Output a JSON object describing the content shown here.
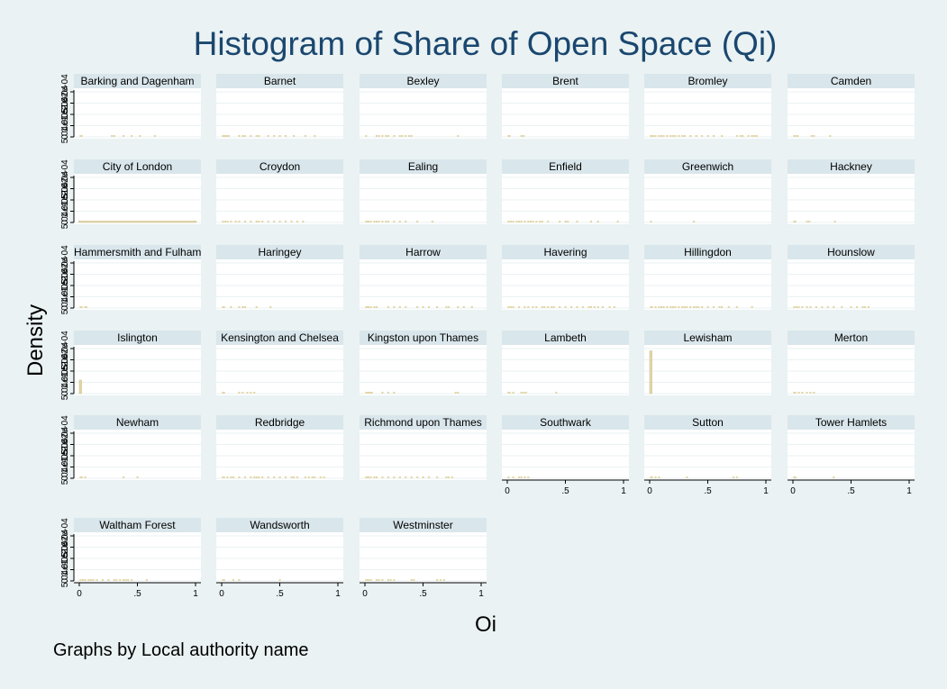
{
  "title": "Histogram of Share of Open Space (Qi)",
  "note": "Graphs by Local authority name",
  "chart_data": {
    "type": "histogram",
    "title": "Histogram of Share of Open Space (Qi)",
    "xlabel": "Oi",
    "ylabel": "Density",
    "xlim": [
      0,
      1
    ],
    "x_ticks": [
      "0",
      ".5",
      "1"
    ],
    "y_ticks": [
      "0",
      "5.04e-05",
      "1.01e-04",
      "1.51e-04",
      "2.02e-04"
    ],
    "grid": true,
    "legend": "none",
    "bar_color": "#e3d6a8",
    "layout": {
      "columns": 6
    },
    "panels": [
      {
        "name": "Barking and Dagenham",
        "values": [
          0.01,
          0.02,
          0.28,
          0.3,
          0.38,
          0.45,
          0.52,
          0.65
        ],
        "heights": []
      },
      {
        "name": "Barnet",
        "values": [
          0.01,
          0.02,
          0.03,
          0.04,
          0.05,
          0.06,
          0.15,
          0.18,
          0.2,
          0.25,
          0.3,
          0.32,
          0.4,
          0.45,
          0.5,
          0.55,
          0.62,
          0.72,
          0.8
        ],
        "heights": []
      },
      {
        "name": "Bexley",
        "values": [
          0.01,
          0.1,
          0.12,
          0.15,
          0.18,
          0.2,
          0.25,
          0.3,
          0.32,
          0.35,
          0.38,
          0.4,
          0.8
        ],
        "heights": []
      },
      {
        "name": "Brent",
        "values": [
          0.01,
          0.02,
          0.12,
          0.14
        ],
        "heights": []
      },
      {
        "name": "Bromley",
        "values": [
          0.01,
          0.02,
          0.03,
          0.05,
          0.08,
          0.1,
          0.12,
          0.15,
          0.18,
          0.2,
          0.22,
          0.25,
          0.28,
          0.3,
          0.35,
          0.4,
          0.45,
          0.5,
          0.55,
          0.62,
          0.75,
          0.78,
          0.8,
          0.85,
          0.88,
          0.9,
          0.92
        ],
        "heights": []
      },
      {
        "name": "Camden",
        "values": [
          0.01,
          0.02,
          0.04,
          0.16,
          0.18,
          0.32
        ],
        "heights": []
      },
      {
        "name": "City of London",
        "values": [
          0,
          1
        ],
        "heights": [
          [
            0,
            1,
            0.03
          ]
        ]
      },
      {
        "name": "Croydon",
        "values": [
          0.01,
          0.03,
          0.05,
          0.08,
          0.12,
          0.15,
          0.2,
          0.25,
          0.3,
          0.32,
          0.35,
          0.4,
          0.45,
          0.5,
          0.55,
          0.6,
          0.65,
          0.7
        ],
        "heights": []
      },
      {
        "name": "Ealing",
        "values": [
          0.01,
          0.02,
          0.03,
          0.05,
          0.08,
          0.1,
          0.12,
          0.15,
          0.18,
          0.2,
          0.25,
          0.3,
          0.35,
          0.45,
          0.58
        ],
        "heights": []
      },
      {
        "name": "Enfield",
        "values": [
          0.01,
          0.03,
          0.05,
          0.08,
          0.1,
          0.12,
          0.15,
          0.18,
          0.2,
          0.22,
          0.25,
          0.28,
          0.3,
          0.35,
          0.45,
          0.5,
          0.52,
          0.6,
          0.72,
          0.78,
          0.95
        ],
        "heights": []
      },
      {
        "name": "Greenwich",
        "values": [
          0.01,
          0.38
        ],
        "heights": []
      },
      {
        "name": "Hackney",
        "values": [
          0.01,
          0.02,
          0.12,
          0.14,
          0.36
        ],
        "heights": []
      },
      {
        "name": "Hammersmith and Fulham",
        "values": [
          0.01,
          0.02,
          0.05,
          0.06
        ],
        "heights": []
      },
      {
        "name": "Haringey",
        "values": [
          0.01,
          0.02,
          0.08,
          0.15,
          0.18,
          0.2,
          0.3,
          0.42
        ],
        "heights": []
      },
      {
        "name": "Harrow",
        "values": [
          0.01,
          0.02,
          0.03,
          0.05,
          0.08,
          0.1,
          0.2,
          0.25,
          0.3,
          0.35,
          0.45,
          0.5,
          0.55,
          0.62,
          0.7,
          0.72,
          0.8,
          0.85,
          0.92
        ],
        "heights": []
      },
      {
        "name": "Havering",
        "values": [
          0.01,
          0.03,
          0.05,
          0.1,
          0.15,
          0.18,
          0.22,
          0.25,
          0.3,
          0.32,
          0.35,
          0.38,
          0.4,
          0.45,
          0.5,
          0.55,
          0.6,
          0.65,
          0.7,
          0.72,
          0.75,
          0.78,
          0.82,
          0.88,
          0.92
        ],
        "heights": []
      },
      {
        "name": "Hillingdon",
        "values": [
          0.01,
          0.02,
          0.05,
          0.08,
          0.1,
          0.12,
          0.15,
          0.18,
          0.2,
          0.22,
          0.25,
          0.28,
          0.3,
          0.32,
          0.35,
          0.38,
          0.4,
          0.42,
          0.45,
          0.5,
          0.55,
          0.6,
          0.62,
          0.68,
          0.75,
          0.88
        ],
        "heights": []
      },
      {
        "name": "Hounslow",
        "values": [
          0.01,
          0.03,
          0.05,
          0.08,
          0.12,
          0.15,
          0.2,
          0.25,
          0.3,
          0.35,
          0.42,
          0.5,
          0.55,
          0.6,
          0.62,
          0.65
        ],
        "heights": []
      },
      {
        "name": "Islington",
        "values": [
          0.01
        ],
        "heights": [
          [
            0,
            0.02,
            0.3
          ]
        ]
      },
      {
        "name": "Kensington and Chelsea",
        "values": [
          0.01,
          0.02,
          0.15,
          0.18,
          0.22,
          0.25,
          0.28
        ],
        "heights": []
      },
      {
        "name": "Kingston upon Thames",
        "values": [
          0.01,
          0.02,
          0.03,
          0.04,
          0.05,
          0.06,
          0.15,
          0.2,
          0.25,
          0.78,
          0.8
        ],
        "heights": []
      },
      {
        "name": "Lambeth",
        "values": [
          0.01,
          0.02,
          0.05,
          0.12,
          0.14,
          0.16,
          0.42
        ],
        "heights": []
      },
      {
        "name": "Lewisham",
        "values": [
          0.01
        ],
        "heights": [
          [
            0,
            0.02,
            0.95
          ]
        ]
      },
      {
        "name": "Merton",
        "values": [
          0.01,
          0.02,
          0.05,
          0.08,
          0.12,
          0.15,
          0.18
        ],
        "heights": []
      },
      {
        "name": "Newham",
        "values": [
          0.01,
          0.02,
          0.05,
          0.38,
          0.5
        ],
        "heights": []
      },
      {
        "name": "Redbridge",
        "values": [
          0.01,
          0.02,
          0.05,
          0.08,
          0.1,
          0.15,
          0.2,
          0.25,
          0.28,
          0.3,
          0.32,
          0.35,
          0.4,
          0.45,
          0.5,
          0.55,
          0.6,
          0.62,
          0.65,
          0.72,
          0.75,
          0.78,
          0.8,
          0.85,
          0.88
        ],
        "heights": []
      },
      {
        "name": "Richmond upon Thames",
        "values": [
          0.01,
          0.02,
          0.03,
          0.05,
          0.08,
          0.1,
          0.15,
          0.2,
          0.25,
          0.3,
          0.35,
          0.4,
          0.45,
          0.5,
          0.55,
          0.62,
          0.7,
          0.72,
          0.75
        ],
        "heights": []
      },
      {
        "name": "Southwark",
        "values": [
          0.01,
          0.05,
          0.1,
          0.12,
          0.15,
          0.18
        ],
        "heights": []
      },
      {
        "name": "Sutton",
        "values": [
          0.01,
          0.02,
          0.05,
          0.08,
          0.32,
          0.72,
          0.75
        ],
        "heights": []
      },
      {
        "name": "Tower Hamlets",
        "values": [
          0.01,
          0.02,
          0.35
        ],
        "heights": []
      },
      {
        "name": "Waltham Forest",
        "values": [
          0.01,
          0.03,
          0.05,
          0.08,
          0.1,
          0.12,
          0.15,
          0.2,
          0.25,
          0.3,
          0.32,
          0.35,
          0.38,
          0.4,
          0.42,
          0.45,
          0.58
        ],
        "heights": []
      },
      {
        "name": "Wandsworth",
        "values": [
          0.01,
          0.02,
          0.1,
          0.15,
          0.5
        ],
        "heights": []
      },
      {
        "name": "Westminster",
        "values": [
          0.01,
          0.02,
          0.03,
          0.05,
          0.1,
          0.12,
          0.15,
          0.2,
          0.22,
          0.25,
          0.4,
          0.42,
          0.62,
          0.65,
          0.68
        ],
        "heights": []
      }
    ]
  }
}
